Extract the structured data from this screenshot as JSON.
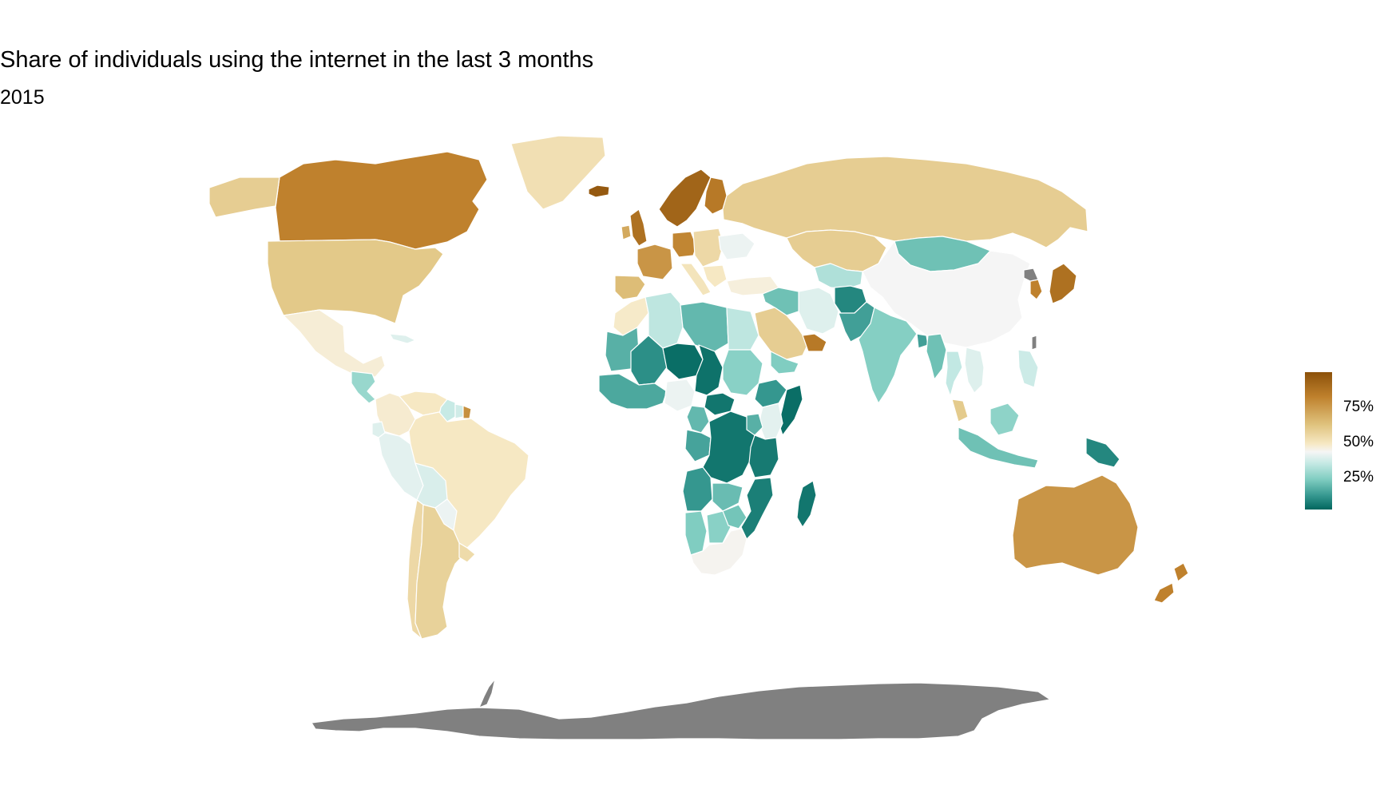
{
  "title": "Share of individuals using the internet in the last 3 months",
  "subtitle": "2015",
  "legend": {
    "ticks": [
      {
        "label": "75%",
        "value": 75
      },
      {
        "label": "50%",
        "value": 50
      },
      {
        "label": "25%",
        "value": 25
      }
    ],
    "range": [
      0,
      100
    ],
    "colors": {
      "high": "#8c510a",
      "mid": "#f5f5f5",
      "low": "#01665e",
      "no_data": "#808080"
    }
  },
  "map": {
    "projection": "equirectangular",
    "border_color": "#ffffff",
    "regions": [
      {
        "name": "Canada",
        "value": 88
      },
      {
        "name": "Alaska",
        "value": 70
      },
      {
        "name": "Greenland",
        "value": 62
      },
      {
        "name": "Iceland",
        "value": 98
      },
      {
        "name": "United States",
        "value": 72
      },
      {
        "name": "Mexico",
        "value": 55
      },
      {
        "name": "Central America",
        "value": 30
      },
      {
        "name": "Caribbean",
        "value": 45
      },
      {
        "name": "Colombia",
        "value": 56
      },
      {
        "name": "Venezuela",
        "value": 58
      },
      {
        "name": "Guyana",
        "value": 40
      },
      {
        "name": "Suriname",
        "value": 42
      },
      {
        "name": "French Guiana",
        "value": 85
      },
      {
        "name": "Ecuador",
        "value": 45
      },
      {
        "name": "Peru",
        "value": 46
      },
      {
        "name": "Brazil",
        "value": 58
      },
      {
        "name": "Bolivia",
        "value": 44
      },
      {
        "name": "Paraguay",
        "value": 48
      },
      {
        "name": "Chile",
        "value": 65
      },
      {
        "name": "Argentina",
        "value": 68
      },
      {
        "name": "Uruguay",
        "value": 64
      },
      {
        "name": "Scandinavia",
        "value": 95
      },
      {
        "name": "Finland",
        "value": 90
      },
      {
        "name": "United Kingdom",
        "value": 92
      },
      {
        "name": "Ireland",
        "value": 80
      },
      {
        "name": "France",
        "value": 84
      },
      {
        "name": "Iberia",
        "value": 76
      },
      {
        "name": "Germany",
        "value": 87
      },
      {
        "name": "Italy",
        "value": 60
      },
      {
        "name": "Eastern Europe",
        "value": 65
      },
      {
        "name": "Ukraine",
        "value": 48
      },
      {
        "name": "Balkans",
        "value": 58
      },
      {
        "name": "Russia",
        "value": 70
      },
      {
        "name": "Turkey",
        "value": 54
      },
      {
        "name": "Kazakhstan",
        "value": 70
      },
      {
        "name": "Central Asia",
        "value": 35
      },
      {
        "name": "Mongolia",
        "value": 22
      },
      {
        "name": "China",
        "value": 50
      },
      {
        "name": "Korea",
        "value": 88
      },
      {
        "name": "Japan",
        "value": 92
      },
      {
        "name": "North Korea",
        "value": null
      },
      {
        "name": "Taiwan",
        "value": null
      },
      {
        "name": "Iran",
        "value": 45
      },
      {
        "name": "Iraq & Syria",
        "value": 22
      },
      {
        "name": "Saudi Arabia",
        "value": 70
      },
      {
        "name": "Gulf States",
        "value": 90
      },
      {
        "name": "Yemen",
        "value": 25
      },
      {
        "name": "Afghanistan",
        "value": 8
      },
      {
        "name": "Pakistan",
        "value": 14
      },
      {
        "name": "India",
        "value": 26
      },
      {
        "name": "Bangladesh",
        "value": 14
      },
      {
        "name": "Myanmar",
        "value": 22
      },
      {
        "name": "Thailand",
        "value": 39
      },
      {
        "name": "Vietnam",
        "value": 45
      },
      {
        "name": "Malaysia",
        "value": 71
      },
      {
        "name": "Philippines",
        "value": 41
      },
      {
        "name": "Indonesia",
        "value": 22
      },
      {
        "name": "Borneo",
        "value": 28
      },
      {
        "name": "Papua New Guinea",
        "value": 8
      },
      {
        "name": "Australia",
        "value": 84
      },
      {
        "name": "New Zealand",
        "value": 88
      },
      {
        "name": "Morocco",
        "value": 57
      },
      {
        "name": "Algeria",
        "value": 38
      },
      {
        "name": "Libya",
        "value": 20
      },
      {
        "name": "Egypt",
        "value": 38
      },
      {
        "name": "Mauritania",
        "value": 18
      },
      {
        "name": "Mali",
        "value": 10
      },
      {
        "name": "Niger",
        "value": 2
      },
      {
        "name": "Chad",
        "value": 3
      },
      {
        "name": "Sudan",
        "value": 27
      },
      {
        "name": "Ethiopia",
        "value": 12
      },
      {
        "name": "Somalia",
        "value": 2
      },
      {
        "name": "West Africa",
        "value": 16
      },
      {
        "name": "Nigeria",
        "value": 48
      },
      {
        "name": "Central African Republic",
        "value": 4
      },
      {
        "name": "Cameroon",
        "value": 20
      },
      {
        "name": "Gabon & Congo",
        "value": 15
      },
      {
        "name": "DR Congo",
        "value": 4
      },
      {
        "name": "Kenya",
        "value": 46
      },
      {
        "name": "Uganda",
        "value": 18
      },
      {
        "name": "Tanzania",
        "value": 5
      },
      {
        "name": "Angola",
        "value": 12
      },
      {
        "name": "Zambia",
        "value": 21
      },
      {
        "name": "Mozambique",
        "value": 6
      },
      {
        "name": "Namibia",
        "value": 25
      },
      {
        "name": "Botswana",
        "value": 27
      },
      {
        "name": "Zimbabwe",
        "value": 23
      },
      {
        "name": "South Africa",
        "value": 51
      },
      {
        "name": "Madagascar",
        "value": 4
      },
      {
        "name": "Antarctica",
        "value": null
      }
    ]
  }
}
